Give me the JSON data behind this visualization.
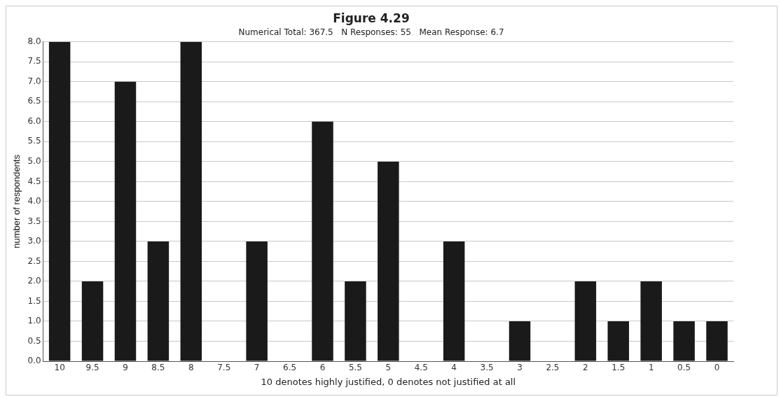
{
  "chart_data": {
    "type": "bar",
    "title": "Figure 4.29",
    "subtitle": "Numerical Total: 367.5   N Responses: 55   Mean Response: 6.7",
    "xlabel": "10 denotes highly justified, 0 denotes not justified at all",
    "ylabel": "number of respondents",
    "categories": [
      "10",
      "9.5",
      "9",
      "8.5",
      "8",
      "7.5",
      "7",
      "6.5",
      "6",
      "5.5",
      "5",
      "4.5",
      "4",
      "3.5",
      "3",
      "2.5",
      "2",
      "1.5",
      "1",
      "0.5",
      "0"
    ],
    "values": [
      8,
      2,
      7,
      3,
      8,
      0,
      3,
      0,
      6,
      2,
      5,
      0,
      3,
      0,
      1,
      0,
      2,
      1,
      2,
      1,
      1
    ],
    "color": "#1a1a1a",
    "ylim": [
      0,
      8
    ],
    "yticks": [
      {
        "value": 0,
        "label": "0.0"
      },
      {
        "value": 0.5,
        "label": "0.5"
      },
      {
        "value": 1,
        "label": "1.0"
      },
      {
        "value": 1.5,
        "label": "1.5"
      },
      {
        "value": 2,
        "label": "2.0"
      },
      {
        "value": 2.5,
        "label": "2.5"
      },
      {
        "value": 3,
        "label": "3.0"
      },
      {
        "value": 3.5,
        "label": "3.5"
      },
      {
        "value": 4,
        "label": "4.0"
      },
      {
        "value": 4.5,
        "label": "4.5"
      },
      {
        "value": 5,
        "label": "5.0"
      },
      {
        "value": 5.5,
        "label": "5.5"
      },
      {
        "value": 6,
        "label": "6.0"
      },
      {
        "value": 6.5,
        "label": "6.5"
      },
      {
        "value": 7,
        "label": "7.0"
      },
      {
        "value": 7.5,
        "label": "7.5"
      },
      {
        "value": 8,
        "label": "8.0"
      }
    ],
    "grid": "y",
    "legend": false
  }
}
